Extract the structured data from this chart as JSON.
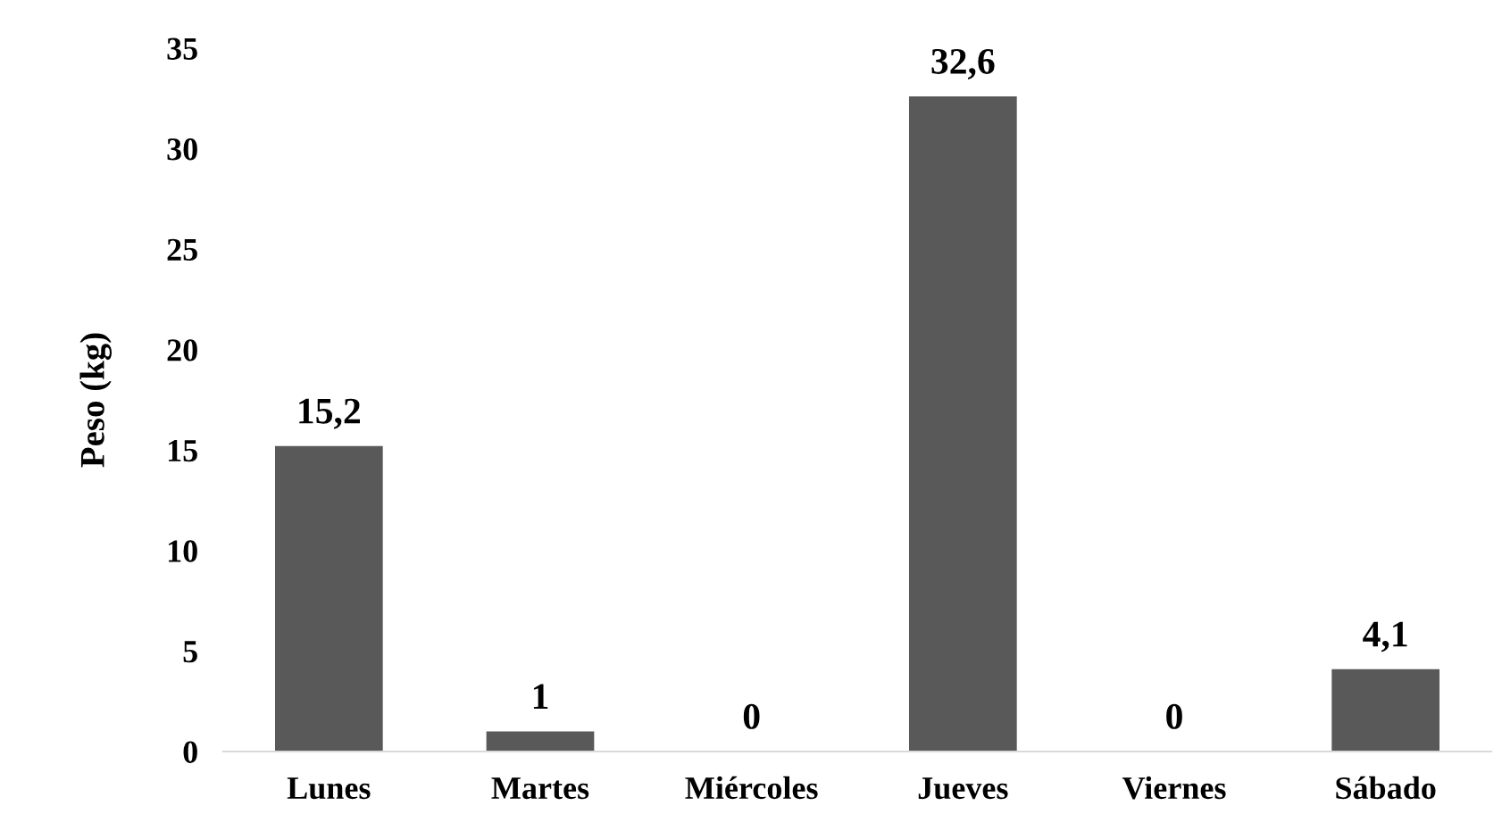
{
  "chart_data": {
    "type": "bar",
    "ylabel": "Peso (kg)",
    "categories": [
      "Lunes",
      "Martes",
      "Miércoles",
      "Jueves",
      "Viernes",
      "Sábado"
    ],
    "values": [
      15.2,
      1,
      0,
      32.6,
      0,
      4.1
    ],
    "value_labels": [
      "15,2",
      "1",
      "0",
      "32,6",
      "0",
      "4,1"
    ],
    "color": "#595959",
    "ylim": [
      0,
      35
    ],
    "yticks": [
      0,
      5,
      10,
      15,
      20,
      25,
      30,
      35
    ],
    "grid": false,
    "legend": false
  }
}
